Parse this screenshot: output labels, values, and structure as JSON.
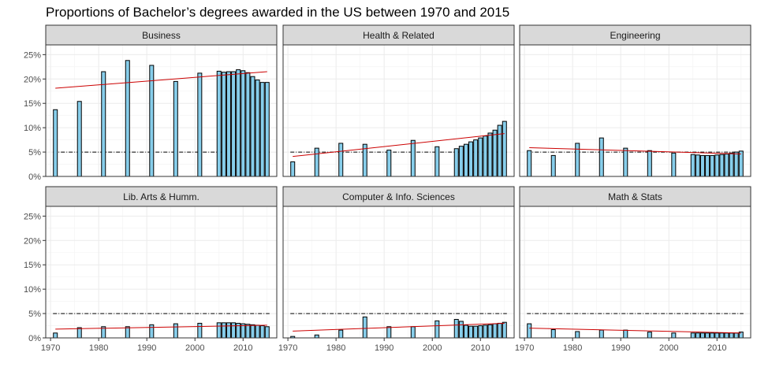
{
  "chart_data": {
    "type": "bar",
    "title": "Proportions of Bachelor’s degrees awarded in the US between 1970 and 2015",
    "xlabel": "",
    "ylabel": "",
    "xlim": [
      1969,
      2017
    ],
    "ylim": [
      0,
      0.27
    ],
    "y_ticks": [
      0,
      0.05,
      0.1,
      0.15,
      0.2,
      0.25
    ],
    "y_tick_labels": [
      "0%",
      "5%",
      "10%",
      "15%",
      "20%",
      "25%"
    ],
    "x_ticks": [
      1970,
      1980,
      1990,
      2000,
      2010
    ],
    "x_tick_labels": [
      "1970",
      "1980",
      "1990",
      "2000",
      "2010"
    ],
    "reference_line_y": 0.05,
    "grid": true,
    "years": [
      1971,
      1976,
      1981,
      1986,
      1991,
      1996,
      2001,
      2005,
      2006,
      2007,
      2008,
      2009,
      2010,
      2011,
      2012,
      2013,
      2014,
      2015
    ],
    "colors": {
      "bar_fill": "#87CEEB",
      "bar_stroke": "#000000",
      "trend": "#CC0000",
      "reference": "#000000",
      "strip": "#D9D9D9",
      "grid": "#EBEBEB"
    },
    "panels": [
      {
        "name": "Business",
        "values": [
          0.137,
          0.154,
          0.215,
          0.238,
          0.228,
          0.195,
          0.212,
          0.216,
          0.214,
          0.215,
          0.215,
          0.219,
          0.217,
          0.213,
          0.205,
          0.198,
          0.193,
          0.193
        ],
        "trend": [
          0.181,
          0.215
        ]
      },
      {
        "name": "Health & Related",
        "values": [
          0.03,
          0.058,
          0.068,
          0.066,
          0.054,
          0.074,
          0.061,
          0.057,
          0.062,
          0.066,
          0.071,
          0.075,
          0.079,
          0.083,
          0.089,
          0.095,
          0.105,
          0.113
        ],
        "trend": [
          0.041,
          0.088
        ]
      },
      {
        "name": "Engineering",
        "values": [
          0.053,
          0.043,
          0.068,
          0.079,
          0.058,
          0.053,
          0.048,
          0.045,
          0.044,
          0.043,
          0.043,
          0.043,
          0.044,
          0.045,
          0.046,
          0.048,
          0.05,
          0.052
        ],
        "trend": [
          0.059,
          0.046
        ]
      },
      {
        "name": "Lib. Arts & Humm.",
        "values": [
          0.01,
          0.021,
          0.023,
          0.023,
          0.027,
          0.029,
          0.03,
          0.031,
          0.031,
          0.031,
          0.031,
          0.03,
          0.029,
          0.028,
          0.027,
          0.026,
          0.025,
          0.023
        ],
        "trend": [
          0.018,
          0.026
        ]
      },
      {
        "name": "Computer & Info. Sciences",
        "values": [
          0.003,
          0.006,
          0.016,
          0.043,
          0.023,
          0.023,
          0.035,
          0.038,
          0.034,
          0.026,
          0.024,
          0.024,
          0.025,
          0.026,
          0.027,
          0.029,
          0.03,
          0.032
        ],
        "trend": [
          0.014,
          0.03
        ]
      },
      {
        "name": "Math & Stats",
        "values": [
          0.029,
          0.017,
          0.013,
          0.016,
          0.016,
          0.012,
          0.01,
          0.01,
          0.01,
          0.01,
          0.01,
          0.01,
          0.01,
          0.01,
          0.01,
          0.01,
          0.01,
          0.012
        ],
        "trend": [
          0.02,
          0.01
        ]
      }
    ]
  }
}
